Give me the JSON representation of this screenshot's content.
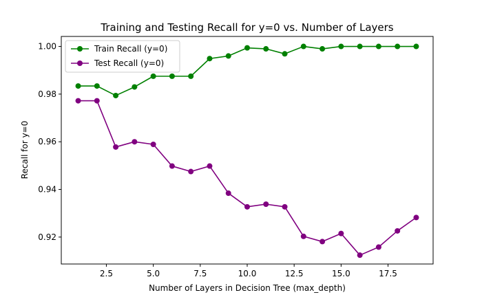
{
  "chart_data": {
    "type": "line",
    "title": "Training and Testing Recall for y=0 vs. Number of Layers",
    "xlabel": "Number of Layers in Decision Tree (max_depth)",
    "ylabel": "Recall for y=0",
    "xlim": [
      0.1,
      19.9
    ],
    "ylim": [
      0.9087,
      1.0042
    ],
    "xticks": [
      2.5,
      5.0,
      7.5,
      10.0,
      12.5,
      15.0,
      17.5
    ],
    "xtick_labels": [
      "2.5",
      "5.0",
      "7.5",
      "10.0",
      "12.5",
      "15.0",
      "17.5"
    ],
    "yticks": [
      0.92,
      0.94,
      0.96,
      0.98,
      1.0
    ],
    "ytick_labels": [
      "0.92",
      "0.94",
      "0.96",
      "0.98",
      "1.00"
    ],
    "grid": false,
    "legend_position": "top-left",
    "x": [
      1,
      2,
      3,
      4,
      5,
      6,
      7,
      8,
      9,
      10,
      11,
      12,
      13,
      14,
      15,
      16,
      17,
      18,
      19
    ],
    "series": [
      {
        "name": "Train Recall (y=0)",
        "color": "#008000",
        "values": [
          0.9834,
          0.9834,
          0.9794,
          0.983,
          0.9875,
          0.9875,
          0.9875,
          0.9949,
          0.996,
          0.9994,
          0.999,
          0.9969,
          1.0,
          0.999,
          1.0,
          1.0,
          1.0,
          1.0,
          1.0
        ]
      },
      {
        "name": "Test Recall (y=0)",
        "color": "#800080",
        "values": [
          0.9772,
          0.9772,
          0.9578,
          0.96,
          0.9589,
          0.9498,
          0.9475,
          0.9498,
          0.9384,
          0.9327,
          0.9338,
          0.9327,
          0.9203,
          0.9181,
          0.9215,
          0.9124,
          0.9158,
          0.9226,
          0.9282
        ]
      }
    ]
  }
}
